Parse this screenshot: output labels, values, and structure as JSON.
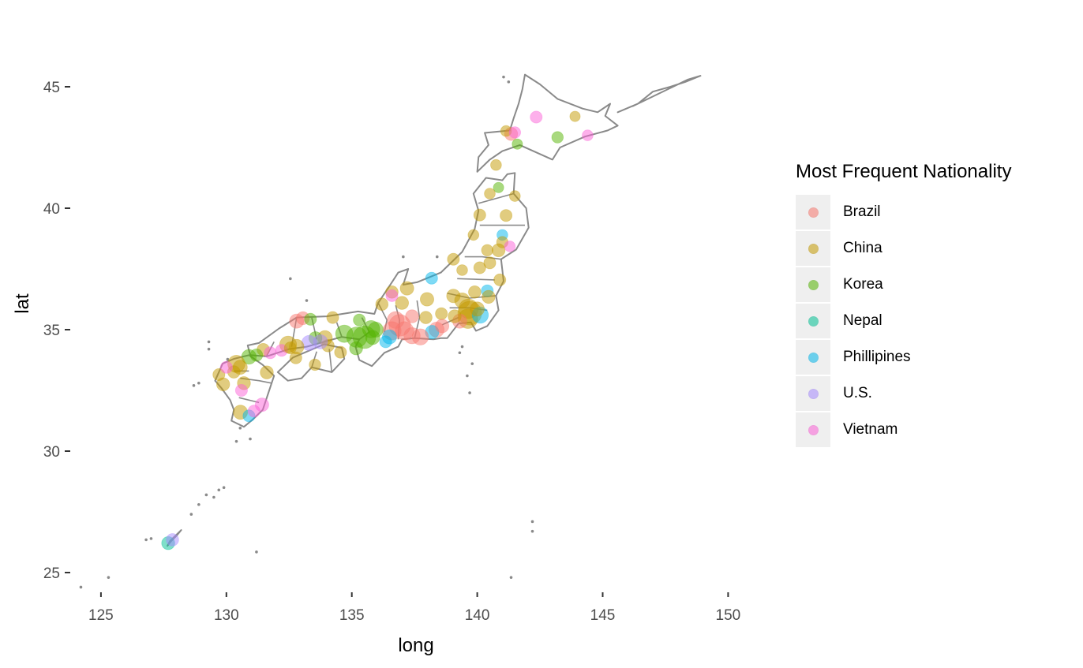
{
  "chart_data": {
    "type": "scatter",
    "subtype": "geographic bubble map of Japan",
    "xlabel": "long",
    "ylabel": "lat",
    "xlim": [
      123.8,
      151.2
    ],
    "ylim": [
      24.3,
      46.2
    ],
    "x_ticks": [
      125,
      130,
      135,
      140,
      145,
      150
    ],
    "y_ticks": [
      25,
      30,
      35,
      40,
      45
    ],
    "legend": {
      "title": "Most Frequent Nationality",
      "position": "right",
      "entries": [
        {
          "name": "Brazil",
          "color": "#F8766D"
        },
        {
          "name": "China",
          "color": "#C49A00"
        },
        {
          "name": "Korea",
          "color": "#53B400"
        },
        {
          "name": "Nepal",
          "color": "#00C094"
        },
        {
          "name": "Phillipines",
          "color": "#00B6EB"
        },
        {
          "name": "U.S.",
          "color": "#A58AFF"
        },
        {
          "name": "Vietnam",
          "color": "#FB61D7"
        }
      ]
    },
    "points": [
      {
        "long": 141.35,
        "lat": 43.06,
        "nat": "Brazil",
        "size": 1.2
      },
      {
        "long": 141.15,
        "lat": 43.18,
        "nat": "China",
        "size": 0.8
      },
      {
        "long": 141.6,
        "lat": 42.64,
        "nat": "Korea",
        "size": 0.7
      },
      {
        "long": 142.35,
        "lat": 43.75,
        "nat": "Vietnam",
        "size": 1
      },
      {
        "long": 143.2,
        "lat": 42.92,
        "nat": "Korea",
        "size": 0.9
      },
      {
        "long": 143.9,
        "lat": 43.78,
        "nat": "China",
        "size": 0.7
      },
      {
        "long": 144.4,
        "lat": 43.0,
        "nat": "Vietnam",
        "size": 0.8
      },
      {
        "long": 141.5,
        "lat": 43.12,
        "nat": "Vietnam",
        "size": 0.9
      },
      {
        "long": 140.75,
        "lat": 41.78,
        "nat": "China",
        "size": 0.8
      },
      {
        "long": 140.85,
        "lat": 40.85,
        "nat": "Korea",
        "size": 0.7
      },
      {
        "long": 140.5,
        "lat": 40.6,
        "nat": "China",
        "size": 0.8
      },
      {
        "long": 141.5,
        "lat": 40.5,
        "nat": "China",
        "size": 0.8
      },
      {
        "long": 140.1,
        "lat": 39.72,
        "nat": "China",
        "size": 1
      },
      {
        "long": 141.15,
        "lat": 39.7,
        "nat": "China",
        "size": 1
      },
      {
        "long": 141.0,
        "lat": 38.9,
        "nat": "Phillipines",
        "size": 0.8
      },
      {
        "long": 141.0,
        "lat": 38.6,
        "nat": "China",
        "size": 0.9
      },
      {
        "long": 140.85,
        "lat": 38.27,
        "nat": "China",
        "size": 1.2
      },
      {
        "long": 141.3,
        "lat": 38.43,
        "nat": "Vietnam",
        "size": 0.8
      },
      {
        "long": 140.4,
        "lat": 38.27,
        "nat": "China",
        "size": 0.9
      },
      {
        "long": 139.85,
        "lat": 38.9,
        "nat": "China",
        "size": 0.8
      },
      {
        "long": 140.5,
        "lat": 37.75,
        "nat": "China",
        "size": 1
      },
      {
        "long": 140.1,
        "lat": 37.55,
        "nat": "China",
        "size": 1
      },
      {
        "long": 139.05,
        "lat": 37.9,
        "nat": "China",
        "size": 1
      },
      {
        "long": 139.4,
        "lat": 37.45,
        "nat": "China",
        "size": 0.8
      },
      {
        "long": 140.9,
        "lat": 37.05,
        "nat": "China",
        "size": 1
      },
      {
        "long": 140.4,
        "lat": 36.6,
        "nat": "Phillipines",
        "size": 1
      },
      {
        "long": 140.45,
        "lat": 36.35,
        "nat": "China",
        "size": 1.2
      },
      {
        "long": 139.9,
        "lat": 36.55,
        "nat": "China",
        "size": 1.1
      },
      {
        "long": 139.05,
        "lat": 36.39,
        "nat": "China",
        "size": 1.3
      },
      {
        "long": 139.4,
        "lat": 36.2,
        "nat": "China",
        "size": 1.6
      },
      {
        "long": 139.65,
        "lat": 35.86,
        "nat": "China",
        "size": 2.4
      },
      {
        "long": 139.7,
        "lat": 35.68,
        "nat": "China",
        "size": 3.2
      },
      {
        "long": 139.63,
        "lat": 35.45,
        "nat": "China",
        "size": 2.4
      },
      {
        "long": 140.12,
        "lat": 35.6,
        "nat": "Phillipines",
        "size": 1.8
      },
      {
        "long": 140.0,
        "lat": 35.85,
        "nat": "China",
        "size": 1.4
      },
      {
        "long": 139.3,
        "lat": 35.35,
        "nat": "Brazil",
        "size": 1.4
      },
      {
        "long": 139.1,
        "lat": 35.55,
        "nat": "China",
        "size": 1.2
      },
      {
        "long": 138.57,
        "lat": 35.66,
        "nat": "China",
        "size": 1
      },
      {
        "long": 138.38,
        "lat": 35.0,
        "nat": "Brazil",
        "size": 1.6
      },
      {
        "long": 138.2,
        "lat": 34.9,
        "nat": "Phillipines",
        "size": 1.3
      },
      {
        "long": 138.6,
        "lat": 35.15,
        "nat": "Brazil",
        "size": 1.3
      },
      {
        "long": 137.73,
        "lat": 34.7,
        "nat": "Brazil",
        "size": 1.8
      },
      {
        "long": 137.4,
        "lat": 34.75,
        "nat": "Brazil",
        "size": 1.8
      },
      {
        "long": 137.1,
        "lat": 34.95,
        "nat": "Brazil",
        "size": 2.2
      },
      {
        "long": 136.91,
        "lat": 35.18,
        "nat": "Brazil",
        "size": 2.8
      },
      {
        "long": 136.6,
        "lat": 34.95,
        "nat": "Brazil",
        "size": 2.2
      },
      {
        "long": 136.75,
        "lat": 35.4,
        "nat": "Brazil",
        "size": 1.9
      },
      {
        "long": 137.0,
        "lat": 36.1,
        "nat": "China",
        "size": 1.2
      },
      {
        "long": 136.6,
        "lat": 36.55,
        "nat": "China",
        "size": 1.1
      },
      {
        "long": 137.2,
        "lat": 36.7,
        "nat": "China",
        "size": 1.3
      },
      {
        "long": 136.6,
        "lat": 36.4,
        "nat": "Vietnam",
        "size": 1
      },
      {
        "long": 136.2,
        "lat": 36.05,
        "nat": "China",
        "size": 1.1
      },
      {
        "long": 138.18,
        "lat": 37.12,
        "nat": "Phillipines",
        "size": 1
      },
      {
        "long": 137.4,
        "lat": 35.55,
        "nat": "Brazil",
        "size": 1.2
      },
      {
        "long": 138.0,
        "lat": 36.25,
        "nat": "China",
        "size": 1.3
      },
      {
        "long": 137.95,
        "lat": 35.5,
        "nat": "China",
        "size": 1.1
      },
      {
        "long": 136.5,
        "lat": 34.7,
        "nat": "Phillipines",
        "size": 1.4
      },
      {
        "long": 136.35,
        "lat": 34.5,
        "nat": "Phillipines",
        "size": 1
      },
      {
        "long": 135.95,
        "lat": 35.0,
        "nat": "Korea",
        "size": 1.6
      },
      {
        "long": 135.77,
        "lat": 35.02,
        "nat": "Korea",
        "size": 2
      },
      {
        "long": 135.5,
        "lat": 34.69,
        "nat": "Korea",
        "size": 3
      },
      {
        "long": 135.2,
        "lat": 34.69,
        "nat": "Korea",
        "size": 2.6
      },
      {
        "long": 134.7,
        "lat": 34.83,
        "nat": "Korea",
        "size": 2
      },
      {
        "long": 135.83,
        "lat": 34.68,
        "nat": "Korea",
        "size": 1.4
      },
      {
        "long": 135.17,
        "lat": 34.23,
        "nat": "Korea",
        "size": 1.2
      },
      {
        "long": 135.3,
        "lat": 35.4,
        "nat": "Korea",
        "size": 1
      },
      {
        "long": 134.55,
        "lat": 34.07,
        "nat": "China",
        "size": 1
      },
      {
        "long": 134.05,
        "lat": 34.34,
        "nat": "China",
        "size": 1.1
      },
      {
        "long": 133.93,
        "lat": 34.66,
        "nat": "China",
        "size": 1.5
      },
      {
        "long": 133.55,
        "lat": 34.65,
        "nat": "Korea",
        "size": 1.2
      },
      {
        "long": 133.75,
        "lat": 34.5,
        "nat": "U.S.",
        "size": 1.4
      },
      {
        "long": 133.3,
        "lat": 34.45,
        "nat": "U.S.",
        "size": 1.6
      },
      {
        "long": 132.46,
        "lat": 34.39,
        "nat": "China",
        "size": 1.9
      },
      {
        "long": 132.8,
        "lat": 34.3,
        "nat": "China",
        "size": 1.5
      },
      {
        "long": 133.05,
        "lat": 35.47,
        "nat": "Brazil",
        "size": 1.2
      },
      {
        "long": 132.8,
        "lat": 35.35,
        "nat": "Brazil",
        "size": 1.4
      },
      {
        "long": 133.35,
        "lat": 35.43,
        "nat": "Korea",
        "size": 1
      },
      {
        "long": 134.24,
        "lat": 35.5,
        "nat": "China",
        "size": 1
      },
      {
        "long": 132.2,
        "lat": 34.15,
        "nat": "Vietnam",
        "size": 1
      },
      {
        "long": 133.53,
        "lat": 33.56,
        "nat": "China",
        "size": 0.9
      },
      {
        "long": 132.77,
        "lat": 33.84,
        "nat": "China",
        "size": 1
      },
      {
        "long": 132.55,
        "lat": 34.25,
        "nat": "China",
        "size": 1
      },
      {
        "long": 131.47,
        "lat": 34.18,
        "nat": "China",
        "size": 1.1
      },
      {
        "long": 131.2,
        "lat": 33.95,
        "nat": "Korea",
        "size": 1.1
      },
      {
        "long": 130.9,
        "lat": 33.88,
        "nat": "Korea",
        "size": 1.5
      },
      {
        "long": 131.75,
        "lat": 34.05,
        "nat": "Vietnam",
        "size": 1
      },
      {
        "long": 130.4,
        "lat": 33.59,
        "nat": "China",
        "size": 2
      },
      {
        "long": 130.55,
        "lat": 33.45,
        "nat": "China",
        "size": 1.4
      },
      {
        "long": 130.3,
        "lat": 33.26,
        "nat": "China",
        "size": 1.1
      },
      {
        "long": 129.87,
        "lat": 32.75,
        "nat": "China",
        "size": 1.2
      },
      {
        "long": 129.7,
        "lat": 33.15,
        "nat": "China",
        "size": 1
      },
      {
        "long": 130.0,
        "lat": 33.45,
        "nat": "Vietnam",
        "size": 1
      },
      {
        "long": 130.7,
        "lat": 32.8,
        "nat": "China",
        "size": 1.2
      },
      {
        "long": 131.61,
        "lat": 33.24,
        "nat": "China",
        "size": 1.2
      },
      {
        "long": 131.42,
        "lat": 31.91,
        "nat": "Vietnam",
        "size": 1.3
      },
      {
        "long": 130.56,
        "lat": 31.6,
        "nat": "China",
        "size": 1.4
      },
      {
        "long": 130.6,
        "lat": 32.5,
        "nat": "Vietnam",
        "size": 1
      },
      {
        "long": 130.9,
        "lat": 31.45,
        "nat": "Phillipines",
        "size": 1
      },
      {
        "long": 131.1,
        "lat": 31.65,
        "nat": "Vietnam",
        "size": 1
      },
      {
        "long": 127.68,
        "lat": 26.21,
        "nat": "Nepal",
        "size": 1.2
      },
      {
        "long": 127.85,
        "lat": 26.35,
        "nat": "U.S.",
        "size": 1.1
      }
    ]
  },
  "map": {
    "outline_color": "#8a8a8a"
  }
}
